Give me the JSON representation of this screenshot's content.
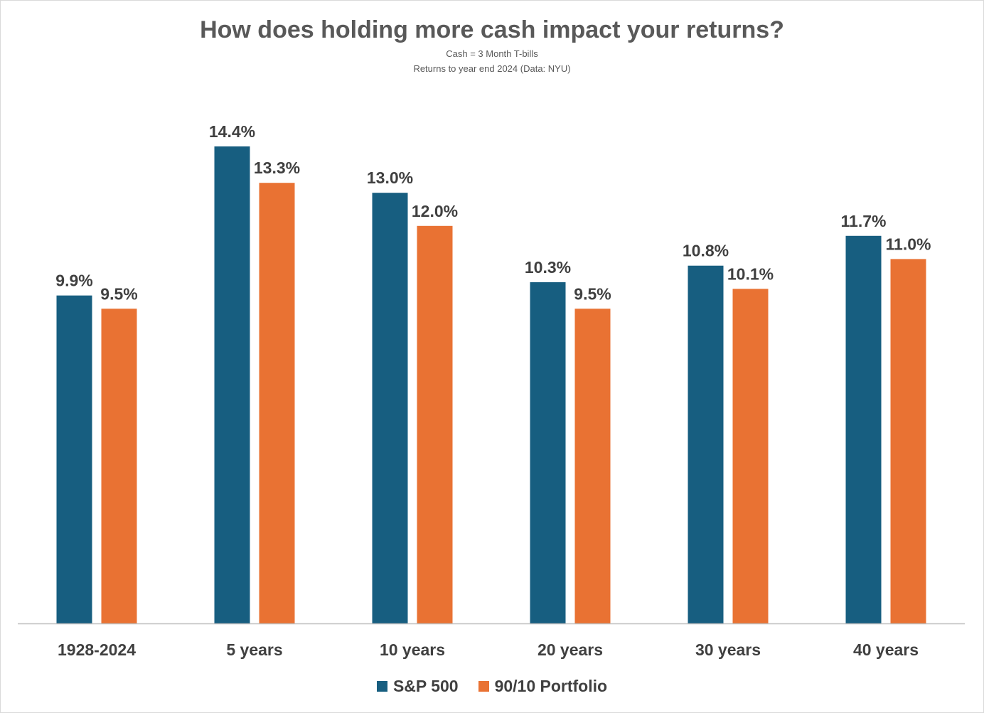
{
  "chart_data": {
    "type": "bar",
    "title": "How does holding more cash impact your returns?",
    "subtitle_lines": [
      "Cash = 3 Month T-bills",
      "Returns to year end 2024 (Data: NYU)"
    ],
    "categories": [
      "1928-2024",
      "5 years",
      "10 years",
      "20 years",
      "30 years",
      "40 years"
    ],
    "series": [
      {
        "name": "S&P 500",
        "color": "#175e80",
        "values": [
          9.9,
          14.4,
          13.0,
          10.3,
          10.8,
          11.7
        ],
        "labels": [
          "9.9%",
          "14.4%",
          "13.0%",
          "10.3%",
          "10.8%",
          "11.7%"
        ]
      },
      {
        "name": "90/10 Portfolio",
        "color": "#e97233",
        "values": [
          9.5,
          13.3,
          12.0,
          9.5,
          10.1,
          11.0
        ],
        "labels": [
          "9.5%",
          "13.3%",
          "12.0%",
          "9.5%",
          "10.1%",
          "11.0%"
        ]
      }
    ],
    "xlabel": "",
    "ylabel": "",
    "ylim": [
      0,
      14.4
    ],
    "grid": false,
    "legend_position": "bottom"
  }
}
